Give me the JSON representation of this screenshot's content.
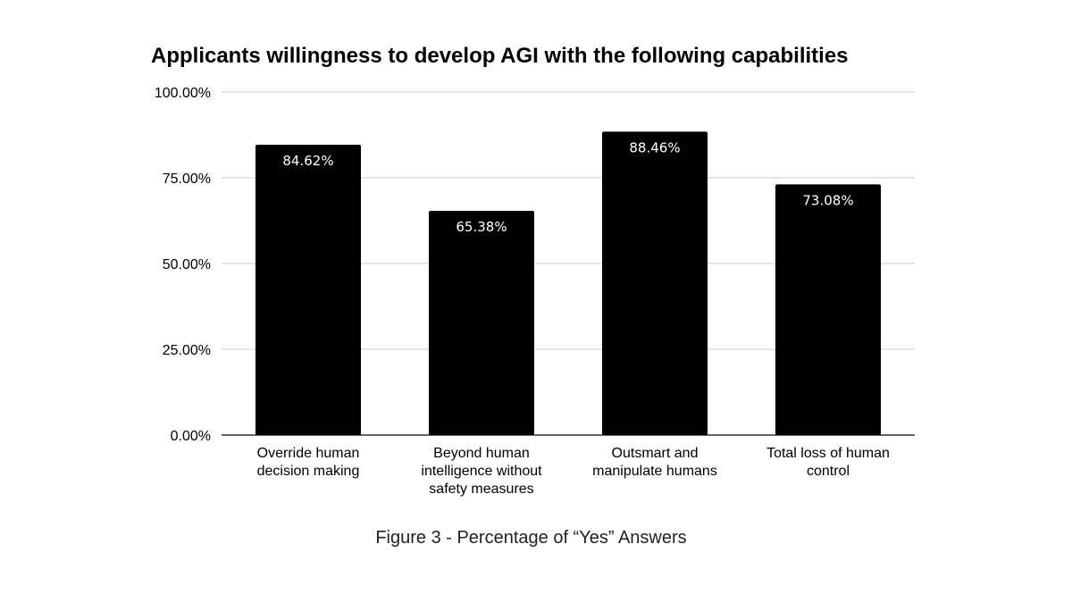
{
  "chart_data": {
    "type": "bar",
    "title": "Applicants willingness to develop AGI with the following capabilities",
    "categories": [
      [
        "Override human",
        "decision making"
      ],
      [
        "Beyond human",
        "intelligence without",
        "safety measures"
      ],
      [
        "Outsmart and",
        "manipulate humans"
      ],
      [
        "Total loss of human",
        "control"
      ]
    ],
    "values": [
      84.62,
      65.38,
      88.46,
      73.08
    ],
    "data_labels": [
      "84.62%",
      "65.38%",
      "88.46%",
      "73.08%"
    ],
    "y_ticks": [
      0,
      25,
      50,
      75,
      100
    ],
    "y_tick_labels": [
      "0.00%",
      "25.00%",
      "50.00%",
      "75.00%",
      "100.00%"
    ],
    "ylim": [
      0,
      100
    ],
    "xlabel": "",
    "ylabel": "",
    "grid": true,
    "legend": "none",
    "bar_color": "#000000",
    "label_color": "#ffffff"
  },
  "caption": "Figure 3 - Percentage of “Yes” Answers"
}
